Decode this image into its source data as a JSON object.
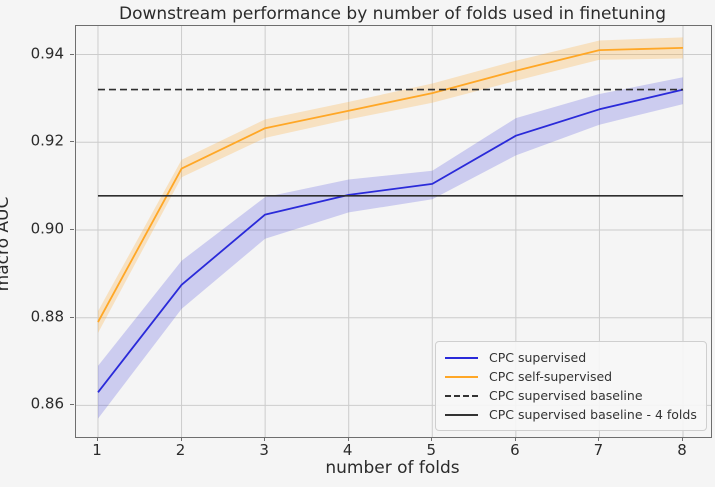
{
  "chart_data": {
    "type": "line",
    "title": "Downstream performance by number of folds used in finetuning",
    "xlabel": "number of folds",
    "ylabel": "macro AUC",
    "x": [
      1,
      2,
      3,
      4,
      5,
      6,
      7,
      8
    ],
    "xtick_labels": [
      "1",
      "2",
      "3",
      "4",
      "5",
      "6",
      "7",
      "8"
    ],
    "yticks": [
      0.86,
      0.88,
      0.9,
      0.92,
      0.94
    ],
    "ytick_labels": [
      "0.86",
      "0.88",
      "0.90",
      "0.92",
      "0.94"
    ],
    "xlim": [
      0.737,
      8.335
    ],
    "ylim": [
      0.8528,
      0.9465
    ],
    "grid": true,
    "grid_color": "#cccccc",
    "background_color": "#f5f5f5",
    "series": [
      {
        "name": "CPC supervised",
        "color": "#2a2ad9",
        "band_color": "rgba(60,60,220,0.22)",
        "values": [
          0.863,
          0.8875,
          0.9035,
          0.908,
          0.9105,
          0.9215,
          0.9275,
          0.932
        ],
        "band_lower": [
          0.857,
          0.882,
          0.898,
          0.904,
          0.907,
          0.917,
          0.924,
          0.9287
        ],
        "band_upper": [
          0.869,
          0.893,
          0.9075,
          0.9115,
          0.9135,
          0.9255,
          0.931,
          0.9348
        ]
      },
      {
        "name": "CPC self-supervised",
        "color": "#ffa726",
        "band_color": "rgba(255,167,38,0.25)",
        "values": [
          0.879,
          0.914,
          0.9232,
          0.9272,
          0.9312,
          0.9363,
          0.941,
          0.9415
        ],
        "band_lower": [
          0.8765,
          0.912,
          0.921,
          0.9252,
          0.929,
          0.934,
          0.9388,
          0.9391
        ],
        "band_upper": [
          0.8815,
          0.916,
          0.9252,
          0.9292,
          0.9334,
          0.9386,
          0.9432,
          0.9439
        ]
      }
    ],
    "baselines": [
      {
        "name": "CPC supervised baseline",
        "value": 0.932,
        "style": "dashed",
        "color": "#2e2e2e",
        "x_start": 1,
        "x_end": 8
      },
      {
        "name": "CPC supervised baseline - 4 folds",
        "value": 0.9078,
        "style": "solid",
        "color": "#2e2e2e",
        "x_start": 1,
        "x_end": 8
      }
    ],
    "legend": {
      "position": "lower right",
      "entries": [
        {
          "label": "CPC supervised",
          "line": "solid",
          "color": "#2a2ad9"
        },
        {
          "label": "CPC self-supervised",
          "line": "solid",
          "color": "#ffa726"
        },
        {
          "label": "CPC supervised baseline",
          "line": "dashed",
          "color": "#333333"
        },
        {
          "label": "CPC supervised baseline - 4 folds",
          "line": "solid",
          "color": "#333333"
        }
      ]
    }
  }
}
